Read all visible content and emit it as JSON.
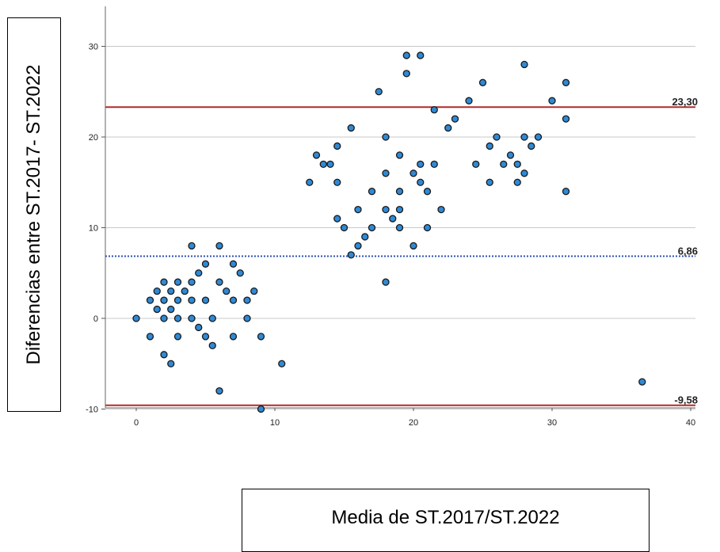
{
  "chart_data": {
    "type": "scatter",
    "title": "",
    "xlabel": "Media de ST.2017/ST.2022",
    "ylabel": "Diferencias entre ST.2017- ST.2022",
    "xlim": [
      -2,
      40
    ],
    "ylim": [
      -10,
      35
    ],
    "x_ticks": [
      "0",
      "10",
      "20",
      "30",
      "40"
    ],
    "y_ticks": [
      "-10",
      "0",
      "10",
      "20",
      "30"
    ],
    "grid": true,
    "reference_lines": [
      {
        "value": 23.3,
        "label": "23,30",
        "color": "#b22a2a",
        "style": "solid"
      },
      {
        "value": 6.86,
        "label": "6,86",
        "color": "#2f4fb4",
        "style": "dotted"
      },
      {
        "value": -9.58,
        "label": "-9,58",
        "color": "#b22a2a",
        "style": "solid"
      }
    ],
    "point_color": "#2e8ad6",
    "points": [
      [
        0,
        0
      ],
      [
        1,
        2
      ],
      [
        1,
        -2
      ],
      [
        1.5,
        1
      ],
      [
        1.5,
        3
      ],
      [
        2,
        4
      ],
      [
        2,
        2
      ],
      [
        2,
        0
      ],
      [
        2,
        -4
      ],
      [
        2.5,
        1
      ],
      [
        2.5,
        3
      ],
      [
        2.5,
        -5
      ],
      [
        3,
        4
      ],
      [
        3,
        2
      ],
      [
        3,
        0
      ],
      [
        3,
        -2
      ],
      [
        3.5,
        3
      ],
      [
        4,
        4
      ],
      [
        4,
        2
      ],
      [
        4,
        0
      ],
      [
        4,
        8
      ],
      [
        4.5,
        -1
      ],
      [
        4.5,
        5
      ],
      [
        5,
        6
      ],
      [
        5,
        2
      ],
      [
        5,
        -2
      ],
      [
        5.5,
        -3
      ],
      [
        5.5,
        0
      ],
      [
        6,
        4
      ],
      [
        6,
        8
      ],
      [
        6,
        -8
      ],
      [
        6.5,
        3
      ],
      [
        7,
        6
      ],
      [
        7,
        2
      ],
      [
        7,
        -2
      ],
      [
        7.5,
        5
      ],
      [
        8,
        2
      ],
      [
        8,
        0
      ],
      [
        8.5,
        3
      ],
      [
        9,
        -2
      ],
      [
        9,
        -10
      ],
      [
        10.5,
        -5
      ],
      [
        12.5,
        15
      ],
      [
        13,
        18
      ],
      [
        13.5,
        17
      ],
      [
        14,
        17
      ],
      [
        14.5,
        19
      ],
      [
        14.5,
        15
      ],
      [
        14.5,
        11
      ],
      [
        15,
        10
      ],
      [
        15.5,
        21
      ],
      [
        15.5,
        7
      ],
      [
        16,
        12
      ],
      [
        16,
        8
      ],
      [
        16.5,
        9
      ],
      [
        17,
        10
      ],
      [
        17,
        14
      ],
      [
        17.5,
        25
      ],
      [
        18,
        20
      ],
      [
        18,
        16
      ],
      [
        18,
        12
      ],
      [
        18,
        4
      ],
      [
        18.5,
        11
      ],
      [
        19,
        18
      ],
      [
        19,
        14
      ],
      [
        19,
        12
      ],
      [
        19,
        10
      ],
      [
        19.5,
        29
      ],
      [
        19.5,
        27
      ],
      [
        20,
        16
      ],
      [
        20,
        8
      ],
      [
        20.5,
        29
      ],
      [
        20.5,
        17
      ],
      [
        20.5,
        15
      ],
      [
        21,
        14
      ],
      [
        21,
        10
      ],
      [
        21.5,
        23
      ],
      [
        21.5,
        17
      ],
      [
        22,
        12
      ],
      [
        22.5,
        21
      ],
      [
        23,
        22
      ],
      [
        24,
        24
      ],
      [
        24.5,
        17
      ],
      [
        25,
        26
      ],
      [
        25.5,
        19
      ],
      [
        25.5,
        15
      ],
      [
        26,
        20
      ],
      [
        26.5,
        17
      ],
      [
        27,
        18
      ],
      [
        27.5,
        17
      ],
      [
        27.5,
        15
      ],
      [
        28,
        28
      ],
      [
        28,
        20
      ],
      [
        28,
        16
      ],
      [
        28.5,
        19
      ],
      [
        29,
        20
      ],
      [
        30,
        24
      ],
      [
        31,
        26
      ],
      [
        31,
        22
      ],
      [
        31,
        14
      ],
      [
        36.5,
        -7
      ]
    ]
  }
}
